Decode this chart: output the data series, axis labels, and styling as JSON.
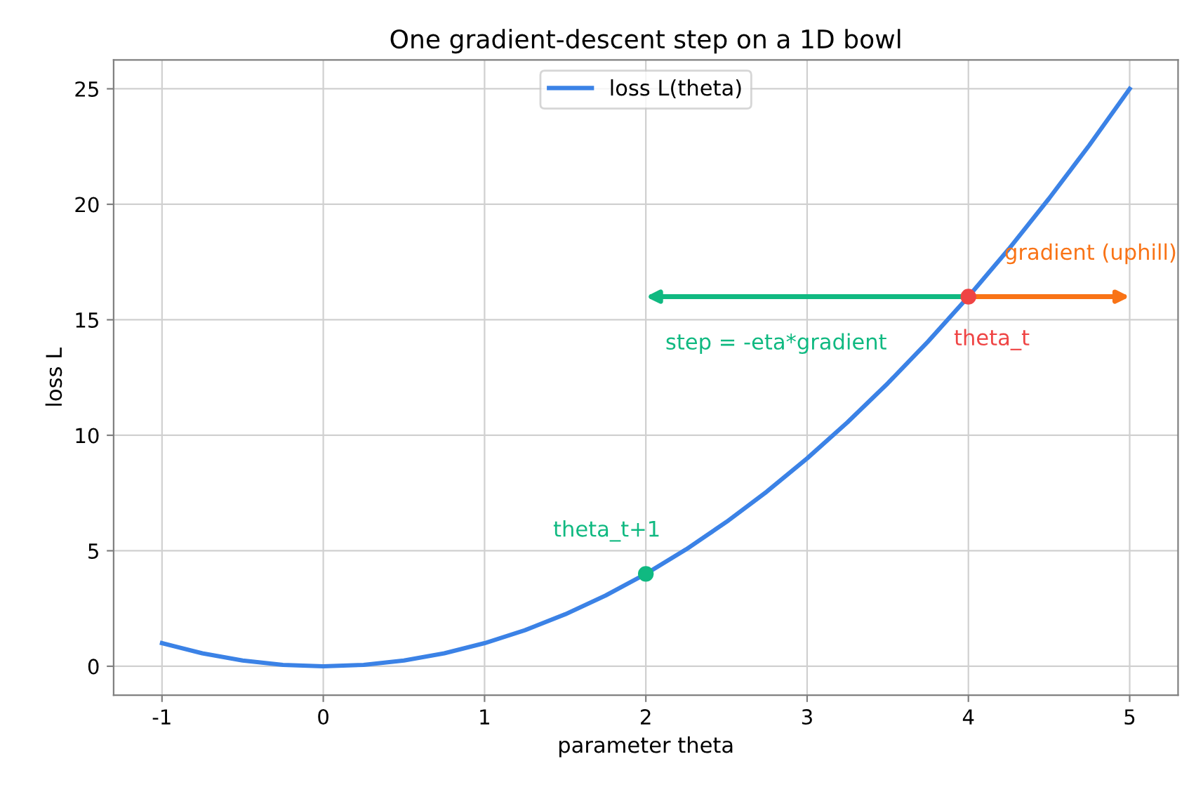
{
  "chart_data": {
    "type": "line",
    "title": "One gradient-descent step on a 1D bowl",
    "xlabel": "parameter theta",
    "ylabel": "loss L",
    "series": [
      {
        "name": "loss L(theta)",
        "color": "#3b82e6",
        "x": [
          -1,
          -0.75,
          -0.5,
          -0.25,
          0,
          0.25,
          0.5,
          0.75,
          1,
          1.25,
          1.5,
          1.75,
          2,
          2.25,
          2.5,
          2.75,
          3,
          3.25,
          3.5,
          3.75,
          4,
          4.25,
          4.5,
          4.75,
          5
        ],
        "values": [
          1,
          0.56,
          0.25,
          0.06,
          0,
          0.06,
          0.25,
          0.56,
          1,
          1.56,
          2.25,
          3.06,
          4,
          5.06,
          6.25,
          7.56,
          9,
          10.56,
          12.25,
          14.06,
          16,
          18.06,
          20.25,
          22.56,
          25
        ]
      },
      {
        "color": "#ef4444",
        "type": "scatter",
        "marker": "circle",
        "x": [
          4
        ],
        "values": [
          16
        ]
      },
      {
        "color": "#10b981",
        "type": "scatter",
        "marker": "circle",
        "x": [
          2
        ],
        "values": [
          4
        ]
      }
    ],
    "annotations": [
      "gradient (uphill)",
      {
        "text": "theta_t",
        "x": 4,
        "y": 16
      },
      "step = -eta*gradient",
      {
        "text": "theta_t+1",
        "x": 2,
        "y": 4
      }
    ],
    "xlim": [
      -1.3,
      5.3
    ],
    "ylim": [
      -1.25,
      26.25
    ],
    "xticks": [
      -1,
      0,
      1,
      2,
      3,
      4,
      5
    ],
    "yticks": [
      0,
      5,
      10,
      15,
      20,
      25
    ],
    "grid": true,
    "legend": "top"
  }
}
